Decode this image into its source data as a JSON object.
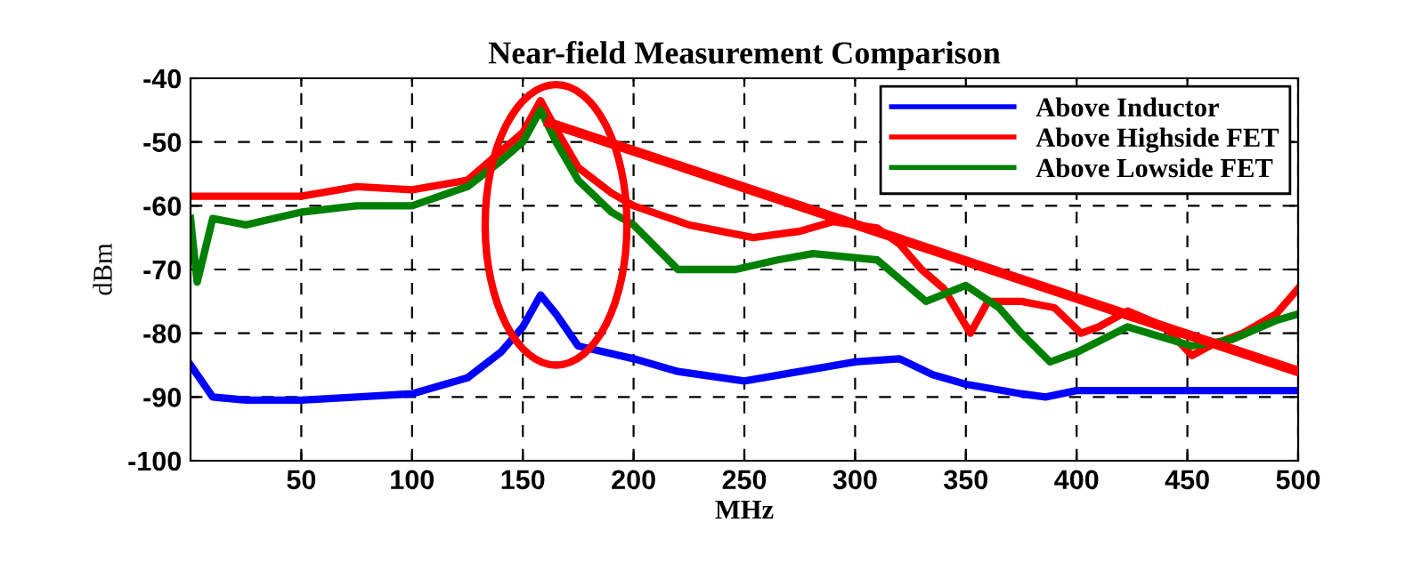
{
  "chart_data": {
    "type": "line",
    "title": "Near-field Measurement Comparison",
    "xlabel": "MHz",
    "ylabel": "dBm",
    "xlim": [
      0,
      500
    ],
    "xticks": [
      50,
      100,
      150,
      200,
      250,
      300,
      350,
      400,
      450,
      500
    ],
    "ylim": [
      -100,
      -40
    ],
    "yticks": [
      -100,
      -90,
      -80,
      -70,
      -60,
      -50,
      -40
    ],
    "grid": true,
    "legend": "top right",
    "series": [
      {
        "name": "Above Inductor",
        "color": "#0000ff",
        "x": [
          0,
          10,
          25,
          50,
          75,
          100,
          125,
          140,
          150,
          158,
          165,
          175,
          200,
          220,
          250,
          275,
          300,
          320,
          335,
          350,
          375,
          386,
          400,
          425,
          450,
          475,
          500
        ],
        "values": [
          -85,
          -90,
          -90.5,
          -90.5,
          -90,
          -89.5,
          -87,
          -83,
          -79,
          -74,
          -77,
          -82,
          -84,
          -86,
          -87.5,
          -86,
          -84.5,
          -84,
          -86.5,
          -88,
          -89.5,
          -90,
          -89,
          -89,
          -89,
          -89,
          -89
        ]
      },
      {
        "name": "Above Highside FET",
        "color": "#ff0000",
        "x": [
          0,
          25,
          50,
          75,
          100,
          125,
          140,
          150,
          158,
          165,
          175,
          190,
          200,
          225,
          254,
          275,
          290,
          310,
          320,
          330,
          340,
          352,
          360,
          375,
          390,
          402,
          410,
          423,
          440,
          452,
          460,
          475,
          490,
          500
        ],
        "values": [
          -58.5,
          -58.5,
          -58.5,
          -57,
          -57.5,
          -56,
          -51.5,
          -48.5,
          -43.5,
          -48,
          -54,
          -58,
          -60,
          -63,
          -65,
          -64,
          -62.5,
          -63.5,
          -66,
          -70,
          -73,
          -80,
          -75,
          -75,
          -76,
          -80,
          -79,
          -76.5,
          -79,
          -83.5,
          -82,
          -80,
          -77,
          -73
        ]
      },
      {
        "name": "Above Lowside FET",
        "color": "#008000",
        "x": [
          0,
          3,
          10,
          25,
          50,
          75,
          100,
          125,
          140,
          150,
          158,
          165,
          175,
          190,
          200,
          220,
          246,
          265,
          281,
          310,
          332,
          350,
          365,
          375,
          388,
          400,
          423,
          452,
          470,
          490,
          500
        ],
        "values": [
          -62,
          -72,
          -62,
          -63,
          -61,
          -60,
          -60,
          -57,
          -53,
          -50,
          -45,
          -50,
          -56,
          -61,
          -63,
          -70,
          -70,
          -68.5,
          -67.5,
          -68.5,
          -75,
          -72.5,
          -76,
          -80,
          -84.5,
          -83,
          -79,
          -82,
          -81,
          -78,
          -77
        ]
      },
      {
        "color": "#ff0000",
        "x": [
          162,
          500
        ],
        "values": [
          -47,
          -86
        ]
      }
    ]
  }
}
